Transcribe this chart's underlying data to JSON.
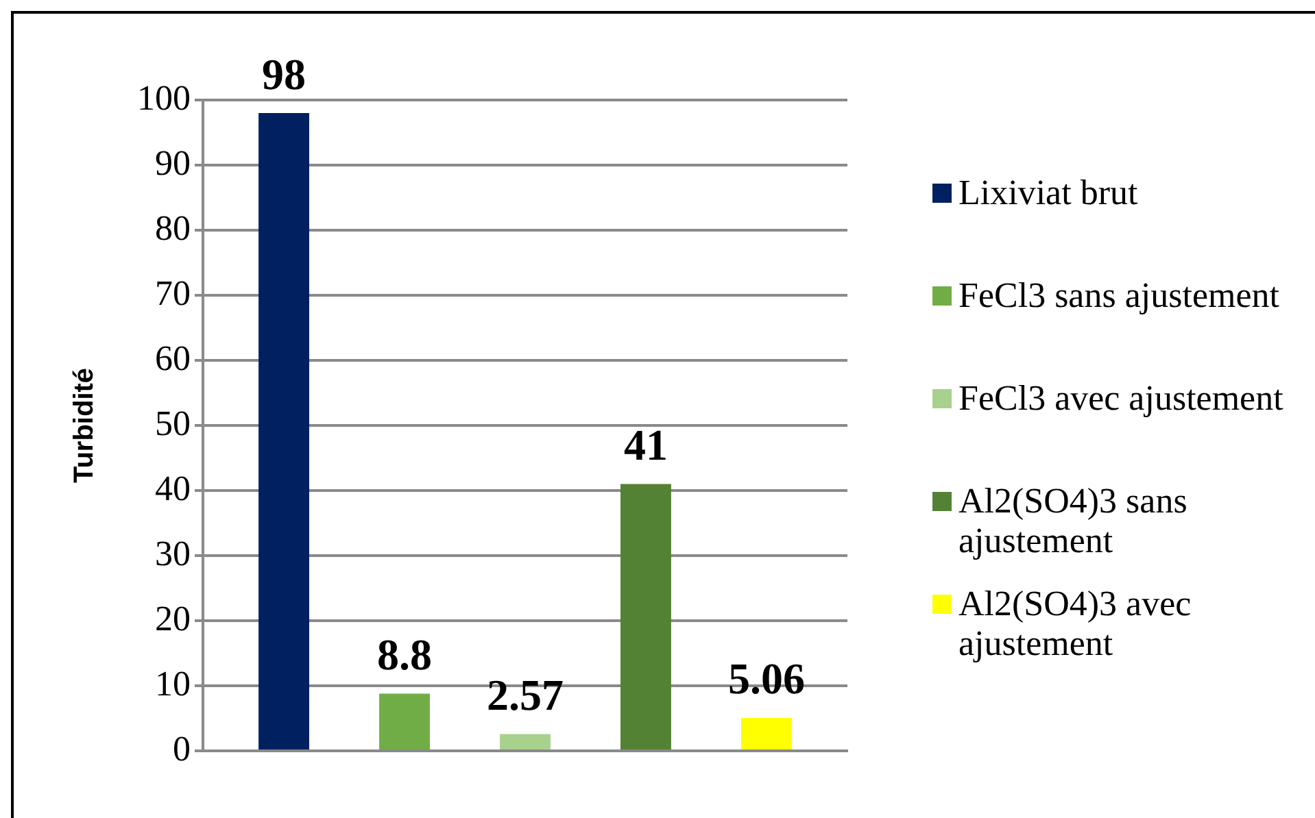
{
  "chart_data": {
    "type": "bar",
    "ylabel": "Turbidité",
    "categories": [
      null
    ],
    "series": [
      {
        "name": "Lixiviat brut",
        "color": "#002060",
        "values": [
          98
        ]
      },
      {
        "name": "FeCl3 sans ajustement",
        "color": "#70ad47",
        "values": [
          8.8
        ]
      },
      {
        "name": "FeCl3 avec ajustement",
        "color": "#a9d18e",
        "values": [
          2.57
        ]
      },
      {
        "name": "Al2(SO4)3 sans ajustement",
        "color": "#548235",
        "values": [
          41
        ]
      },
      {
        "name": "Al2(SO4)3 avec ajustement",
        "color": "#ffff00",
        "values": [
          5.06
        ]
      }
    ],
    "ylim": [
      0,
      100
    ],
    "yticks": [
      0,
      10,
      20,
      30,
      40,
      50,
      60,
      70,
      80,
      90,
      100
    ],
    "grid": "y",
    "legend": "right",
    "data_labels": true
  }
}
